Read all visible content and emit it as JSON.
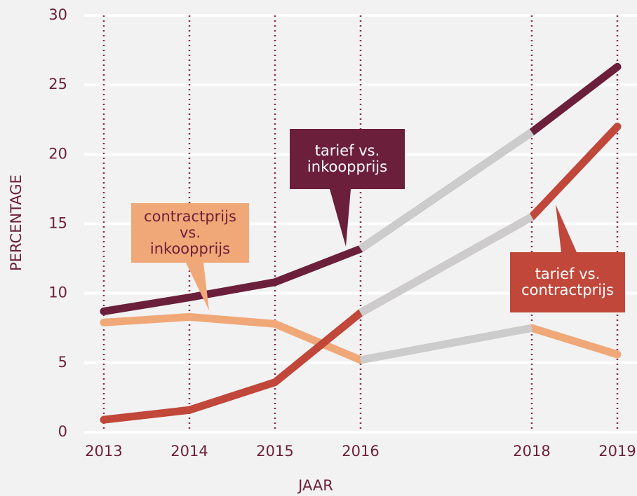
{
  "chart_data": {
    "type": "line",
    "x_label": "JAAR",
    "y_label": "PERCENTAGE",
    "x": [
      2013,
      2014,
      2015,
      2016,
      2018,
      2019
    ],
    "series": [
      {
        "name": "tarief vs. inkoopprijs",
        "color": "#6b1f3a",
        "label_color": "#ffffff",
        "values": [
          8.7,
          9.7,
          10.8,
          13.2,
          21.6,
          26.3
        ]
      },
      {
        "name": "contractprijs vs. inkoopprijs",
        "color": "#f0a878",
        "label_color": "#6b1f3a",
        "values": [
          7.9,
          8.3,
          7.8,
          5.2,
          7.5,
          5.6
        ]
      },
      {
        "name": "tarief vs. contractprijs",
        "color": "#c0473a",
        "label_color": "#ffffff",
        "values": [
          0.9,
          1.6,
          3.6,
          8.6,
          15.5,
          22.0
        ]
      }
    ],
    "interpolated_color": "#cccccc",
    "xlim": [
      2013,
      2019
    ],
    "xticks": [
      2013,
      2014,
      2015,
      2016,
      2018,
      2019
    ],
    "ylim": [
      0,
      30
    ],
    "yticks": [
      0,
      5,
      10,
      15,
      20,
      25,
      30
    ],
    "grid": true
  }
}
